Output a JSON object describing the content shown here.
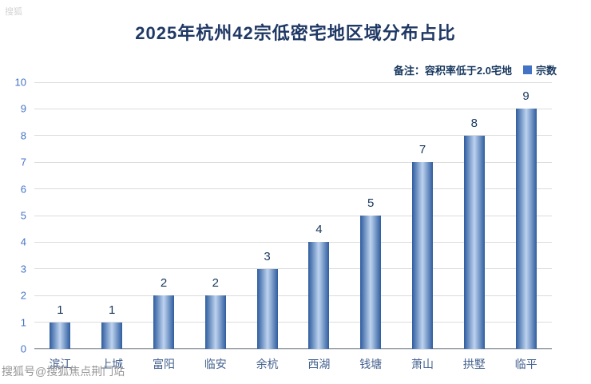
{
  "chart_data": {
    "type": "bar",
    "title": "2025年杭州42宗低密宅地区域分布占比",
    "note": "备注：容积率低于2.0宅地",
    "legend": "宗数",
    "categories": [
      "滨江",
      "上城",
      "富阳",
      "临安",
      "余杭",
      "西湖",
      "钱塘",
      "萧山",
      "拱墅",
      "临平"
    ],
    "values": [
      1,
      1,
      2,
      2,
      3,
      4,
      5,
      7,
      8,
      9
    ],
    "xlabel": "",
    "ylabel": "",
    "ylim": [
      0,
      10
    ],
    "ytick_step": 1,
    "grid": true,
    "legend_position": "top-right",
    "colors": {
      "title": "#1f3864",
      "bar_edge": "#2e5c9e",
      "bar_center": "#bdd3ef",
      "legend_swatch": "#4472c4",
      "y_tick_label": "#4473c4",
      "x_tick_label": "#44618f",
      "data_label": "#17375e",
      "gridline": "#dcdcdc"
    }
  },
  "watermarks": {
    "corner": "搜狐",
    "bottom": "搜狐号@搜狐焦点荆门站"
  }
}
